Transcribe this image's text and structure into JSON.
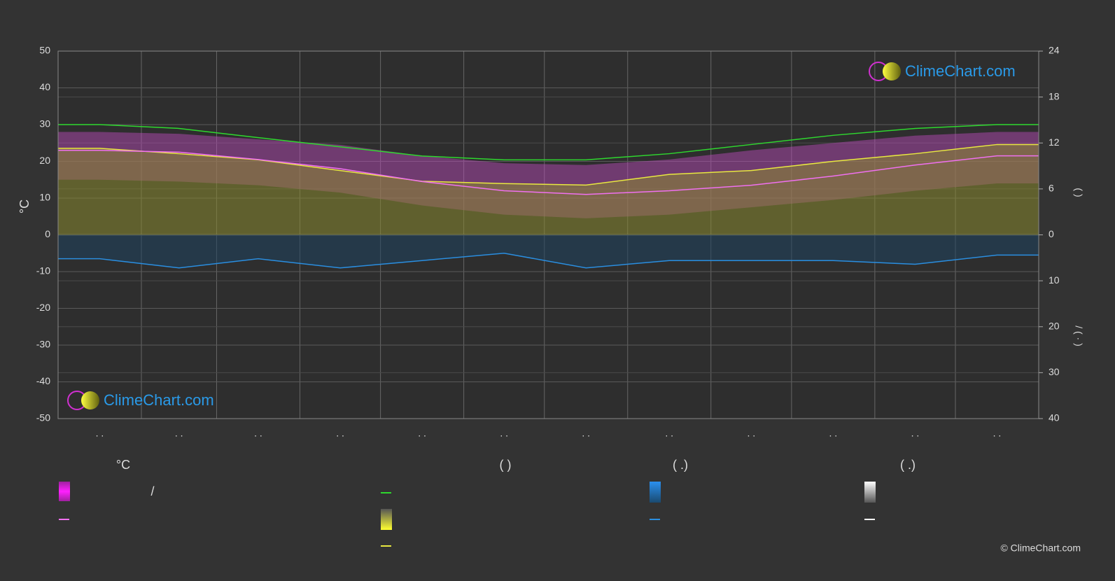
{
  "chart_data": {
    "type": "line",
    "y_label": "°C",
    "y2_label": "(          )",
    "y3_label": "/        (  ·  )",
    "categories": [
      ". .",
      ". .",
      ". .",
      ". .",
      ". .",
      ". .",
      ". .",
      ". .",
      ". .",
      ". .",
      ". .",
      ". ."
    ],
    "ylim": [
      -50,
      50
    ],
    "yticks": [
      -50,
      -40,
      -30,
      -20,
      -10,
      0,
      10,
      20,
      30,
      40,
      50
    ],
    "y2lim": [
      0,
      24
    ],
    "y2ticks": [
      0,
      6,
      12,
      18,
      24
    ],
    "y3lim": [
      0,
      40
    ],
    "y3ticks": [
      10,
      20,
      30,
      40
    ],
    "grid": true,
    "bands": [
      {
        "color": "#c04cc0",
        "upper": [
          28,
          27.5,
          26,
          24.5,
          21.5,
          19.5,
          19,
          20.5,
          23,
          25,
          27,
          28
        ],
        "lower": [
          15,
          14.5,
          13.5,
          11.5,
          8,
          5.5,
          4.5,
          5.5,
          7.5,
          9.5,
          12,
          14
        ]
      }
    ],
    "series": [
      {
        "color": "#2ed82e",
        "axis": "y2",
        "values": [
          14.4,
          13.9,
          12.7,
          11.5,
          10.3,
          9.8,
          9.8,
          10.6,
          11.8,
          13,
          13.9,
          14.4
        ]
      },
      {
        "color": "#e8e840",
        "axis": "y2",
        "fill": "#8a8a30",
        "values": [
          11.3,
          10.6,
          9.8,
          8.4,
          7,
          6.7,
          6.5,
          7.9,
          8.4,
          9.6,
          10.6,
          11.8
        ]
      },
      {
        "color": "#f070f0",
        "values": [
          23,
          22.5,
          20.5,
          18,
          14.5,
          12,
          11,
          12,
          13.5,
          16,
          19,
          21.5
        ]
      },
      {
        "color": "#2a8ee0",
        "axis": "y3",
        "fill": "#1f4460",
        "values": [
          5.2,
          7.2,
          5.2,
          7.2,
          5.6,
          4,
          7.2,
          5.6,
          5.6,
          5.6,
          6.4,
          4.4
        ]
      }
    ],
    "legend": {
      "headers": [
        "°C",
        "(          )",
        "(   .)",
        "(   .)"
      ],
      "separator": "/"
    },
    "logo": "ClimeChart.com",
    "copyright": "© ClimeChart.com"
  }
}
